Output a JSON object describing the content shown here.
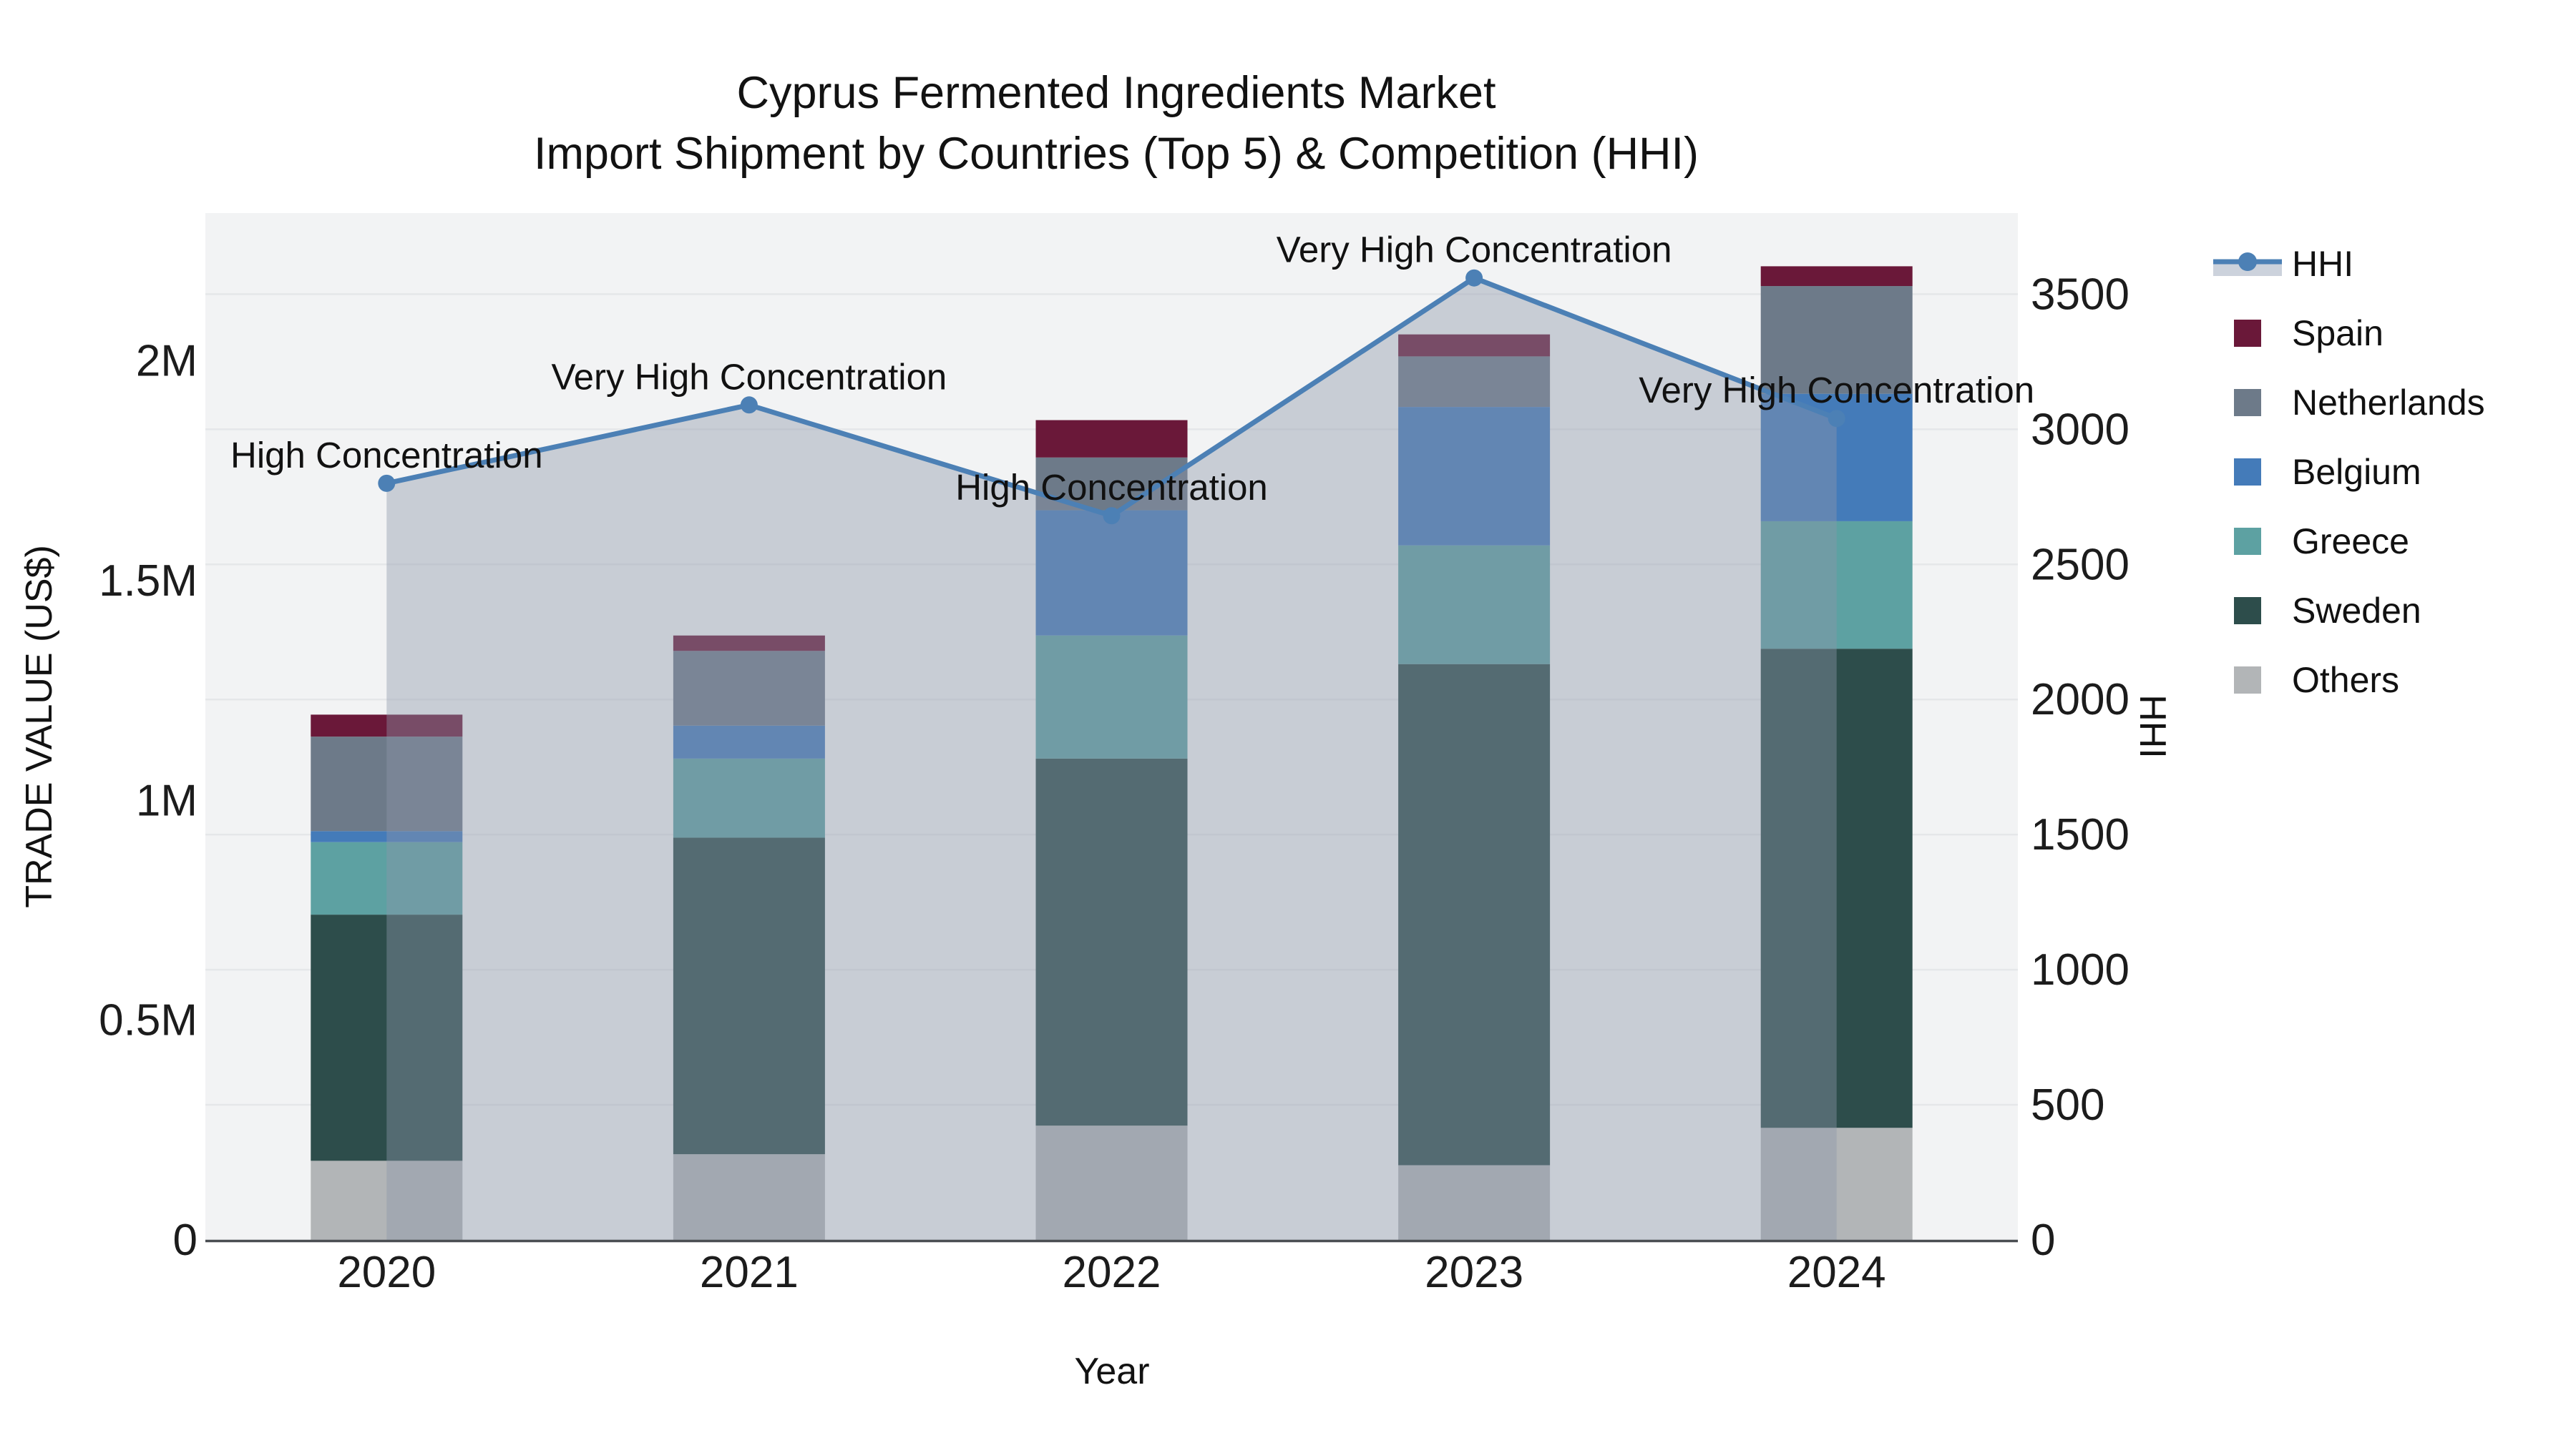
{
  "title": {
    "line1": "Cyprus Fermented Ingredients Market",
    "line2": "Import Shipment by Countries (Top 5) & Competition (HHI)"
  },
  "legend": {
    "items": [
      {
        "label": "HHI",
        "type": "line-marker",
        "color": "#4c80b5",
        "band_color": "#ccd2dc"
      },
      {
        "label": "Spain",
        "type": "square",
        "color": "#6a1839"
      },
      {
        "label": "Netherlands",
        "type": "square",
        "color": "#6d7a89"
      },
      {
        "label": "Belgium",
        "type": "square",
        "color": "#447bb9"
      },
      {
        "label": "Greece",
        "type": "square",
        "color": "#5da1a2"
      },
      {
        "label": "Sweden",
        "type": "square",
        "color": "#2d4d4b"
      },
      {
        "label": "Others",
        "type": "square",
        "color": "#b2b5b7"
      }
    ]
  },
  "chart_data": {
    "type": "bar",
    "title": "Cyprus Fermented Ingredients Market",
    "subtitle": "Import Shipment by Countries (Top 5) & Competition (HHI)",
    "x_label": "Year",
    "categories": [
      "2020",
      "2021",
      "2022",
      "2023",
      "2024"
    ],
    "stack_order_bottom_to_top": [
      "Others",
      "Sweden",
      "Greece",
      "Belgium",
      "Netherlands",
      "Spain"
    ],
    "series": [
      {
        "name": "Spain",
        "color": "#6a1839",
        "values": [
          50000,
          35000,
          85000,
          50000,
          45000
        ]
      },
      {
        "name": "Netherlands",
        "color": "#6d7a89",
        "values": [
          215000,
          170000,
          120000,
          115000,
          245000
        ]
      },
      {
        "name": "Belgium",
        "color": "#447bb9",
        "values": [
          25000,
          75000,
          285000,
          315000,
          290000
        ]
      },
      {
        "name": "Greece",
        "color": "#5da1a2",
        "values": [
          165000,
          180000,
          280000,
          270000,
          290000
        ]
      },
      {
        "name": "Sweden",
        "color": "#2d4d4b",
        "values": [
          560000,
          720000,
          835000,
          1140000,
          1090000
        ]
      },
      {
        "name": "Others",
        "color": "#b2b5b7",
        "values": [
          180000,
          195000,
          260000,
          170000,
          255000
        ]
      }
    ],
    "line_series": {
      "name": "HHI",
      "axis": "right",
      "color": "#4c80b5",
      "area_fill": "rgba(140,150,170,0.41)",
      "values": [
        2800,
        3090,
        2680,
        3560,
        3040
      ]
    },
    "annotations": [
      "High Concentration",
      "Very High Concentration",
      "High Concentration",
      "Very High Concentration",
      "Very High Concentration"
    ],
    "y_left": {
      "label": "TRADE VALUE (US$)",
      "range": [
        0,
        2336000
      ],
      "ticks": [
        {
          "v": 0,
          "label": "0"
        },
        {
          "v": 500000,
          "label": "0.5M"
        },
        {
          "v": 1000000,
          "label": "1M"
        },
        {
          "v": 1500000,
          "label": "1.5M"
        },
        {
          "v": 2000000,
          "label": "2M"
        }
      ]
    },
    "y_right": {
      "label": "HHI",
      "range": [
        0,
        3800
      ],
      "ticks": [
        {
          "v": 0,
          "label": "0"
        },
        {
          "v": 500,
          "label": "500"
        },
        {
          "v": 1000,
          "label": "1000"
        },
        {
          "v": 1500,
          "label": "1500"
        },
        {
          "v": 2000,
          "label": "2000"
        },
        {
          "v": 2500,
          "label": "2500"
        },
        {
          "v": 3000,
          "label": "3000"
        },
        {
          "v": 3500,
          "label": "3500"
        }
      ]
    },
    "layout": {
      "grid": "horizontal, right axis every 500",
      "legend_position": "right",
      "plot_bg": "#f2f3f4",
      "grid_color": "#e5e7e9",
      "axis_line_color": "#4a4e52",
      "annotation_color": "#111111",
      "tick_color": "#1c1c1c"
    }
  }
}
